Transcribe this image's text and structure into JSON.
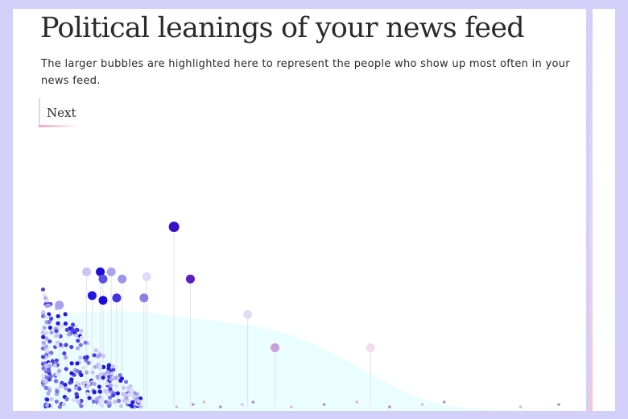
{
  "header": {
    "title": "Political leanings of your news feed",
    "subtitle": "The larger bubbles are highlighted here to represent the people who show up most often in your news feed."
  },
  "controls": {
    "next_label": "Next"
  },
  "colors": {
    "background": "#d2d0f8",
    "blue": "#2a1fd9",
    "purple": "#4a13b8",
    "pink": "#c98ac8",
    "distribution_fill": "#ebfeff"
  },
  "chart_data": {
    "type": "scatter",
    "description_hidden": false,
    "x_range": [
      0,
      1
    ],
    "highlighted": [
      {
        "x": 0.085,
        "y": 0.57,
        "color": "#c8c5f5"
      },
      {
        "x": 0.11,
        "y": 0.57,
        "color": "#1a0de0"
      },
      {
        "x": 0.13,
        "y": 0.57,
        "color": "#a9a4f0"
      },
      {
        "x": 0.115,
        "y": 0.54,
        "color": "#5a50e6"
      },
      {
        "x": 0.15,
        "y": 0.54,
        "color": "#9b94ec"
      },
      {
        "x": 0.195,
        "y": 0.55,
        "color": "#dedcf9"
      },
      {
        "x": 0.245,
        "y": 0.76,
        "color": "#3a0fc7"
      },
      {
        "x": 0.275,
        "y": 0.54,
        "color": "#5b1cc0"
      },
      {
        "x": 0.035,
        "y": 0.43,
        "color": "#a7a1ef"
      },
      {
        "x": 0.095,
        "y": 0.47,
        "color": "#2318e2"
      },
      {
        "x": 0.115,
        "y": 0.45,
        "color": "#1a0de0"
      },
      {
        "x": 0.14,
        "y": 0.46,
        "color": "#3f33e6"
      },
      {
        "x": 0.19,
        "y": 0.46,
        "color": "#8a80e5"
      },
      {
        "x": 0.38,
        "y": 0.39,
        "color": "#e0dcf4"
      },
      {
        "x": 0.43,
        "y": 0.25,
        "color": "#c9a0dc"
      },
      {
        "x": 0.605,
        "y": 0.25,
        "color": "#f0dcef"
      }
    ]
  }
}
